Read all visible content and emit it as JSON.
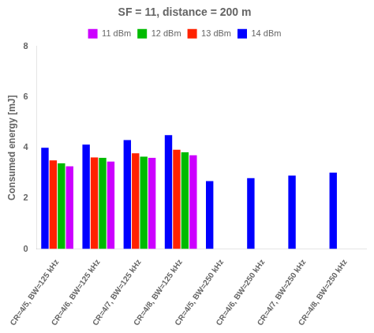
{
  "chart_data": {
    "type": "bar",
    "title": "SF = 11, distance = 200 m",
    "ylabel": "Consumed energy [mJ]",
    "categories": [
      "CR=4/5, BW=125 kHz",
      "CR=4/6, BW=125 kHz",
      "CR=4/7, BW=125 kHz",
      "CR=4/8, BW=125 kHz",
      "CR=4/5, BW=250 kHz",
      "CR=4/6, BW=250 kHz",
      "CR=4/7, BW=250 kHz",
      "CR=4/8, BW=250 kHz"
    ],
    "series": [
      {
        "name": "14 dBm",
        "color": "#0000ff",
        "values": [
          4.0,
          4.12,
          4.3,
          4.5,
          2.68,
          2.8,
          2.9,
          3.02
        ]
      },
      {
        "name": "13 dBm",
        "color": "#ff2200",
        "values": [
          3.5,
          3.62,
          3.78,
          3.92,
          null,
          null,
          null,
          null
        ]
      },
      {
        "name": "12 dBm",
        "color": "#00bb00",
        "values": [
          3.38,
          3.6,
          3.65,
          3.82,
          null,
          null,
          null,
          null
        ]
      },
      {
        "name": "11 dBm",
        "color": "#cc00ff",
        "values": [
          3.27,
          3.45,
          3.6,
          3.7,
          null,
          null,
          null,
          null
        ]
      }
    ],
    "ylim": [
      0,
      8
    ],
    "yticks": [
      0,
      2,
      4,
      6,
      8
    ],
    "grid": false,
    "legend": "top"
  }
}
